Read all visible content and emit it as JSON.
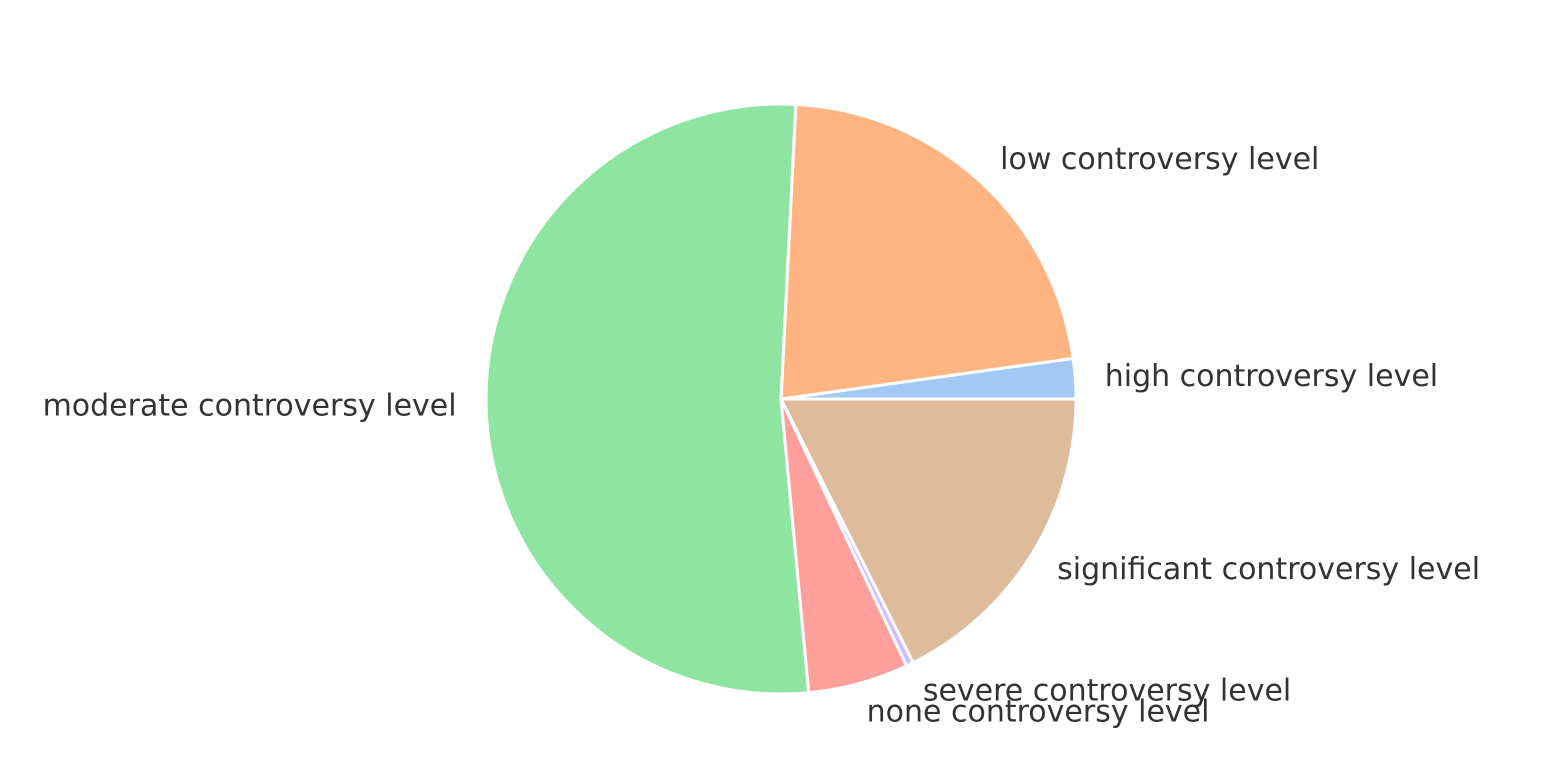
{
  "chart_data": {
    "type": "pie",
    "start_angle_deg": 0,
    "direction": "counterclockwise",
    "slices": [
      {
        "label": "high controversy level",
        "value": 2.2,
        "color": "#a1c9f4"
      },
      {
        "label": "low controversy level",
        "value": 22.0,
        "color": "#ffb482"
      },
      {
        "label": "moderate controversy level",
        "value": 52.3,
        "color": "#8de5a1"
      },
      {
        "label": "none controversy level",
        "value": 5.5,
        "color": "#ff9f9b"
      },
      {
        "label": "severe controversy level",
        "value": 0.4,
        "color": "#d0bbff"
      },
      {
        "label": "significant controversy level",
        "value": 17.6,
        "color": "#debb9b"
      }
    ]
  }
}
